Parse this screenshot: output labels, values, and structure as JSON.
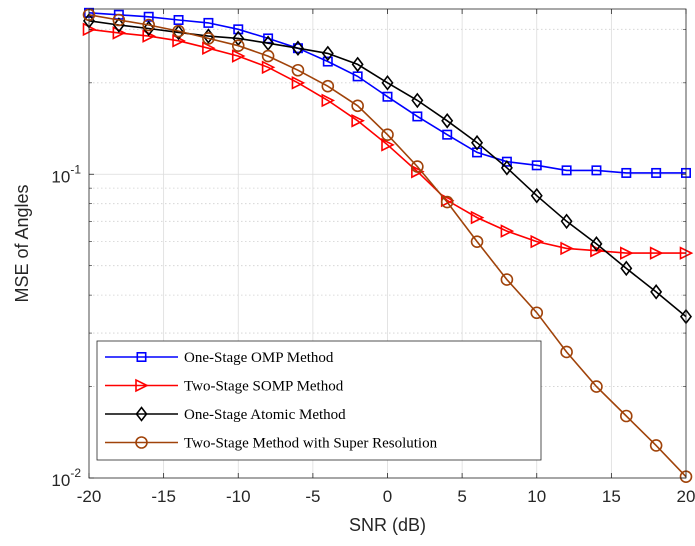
{
  "chart_data": {
    "type": "line",
    "title": "",
    "xlabel": "SNR (dB)",
    "ylabel": "MSE of Angles",
    "xlim": [
      -20,
      20
    ],
    "ylim": [
      0.01,
      0.35
    ],
    "y_scale": "log",
    "grid": true,
    "legend_position": "bottom-left",
    "x": [
      -20,
      -18,
      -16,
      -14,
      -12,
      -10,
      -8,
      -6,
      -4,
      -2,
      0,
      2,
      4,
      6,
      8,
      10,
      12,
      14,
      16,
      18,
      20
    ],
    "x_ticks": [
      {
        "value": -20,
        "label": "-20"
      },
      {
        "value": -15,
        "label": "-15"
      },
      {
        "value": -10,
        "label": "-10"
      },
      {
        "value": -5,
        "label": "-5"
      },
      {
        "value": 0,
        "label": "0"
      },
      {
        "value": 5,
        "label": "5"
      },
      {
        "value": 10,
        "label": "10"
      },
      {
        "value": 15,
        "label": "15"
      },
      {
        "value": 20,
        "label": "20"
      }
    ],
    "y_ticks": [
      {
        "value": 0.01,
        "base": "10",
        "exp": "-2"
      },
      {
        "value": 0.1,
        "base": "10",
        "exp": "-1"
      }
    ],
    "series": [
      {
        "name": "One-Stage OMP Method",
        "color": "#0000ff",
        "marker": "square",
        "values": [
          0.34,
          0.335,
          0.33,
          0.322,
          0.315,
          0.3,
          0.28,
          0.26,
          0.235,
          0.21,
          0.18,
          0.155,
          0.135,
          0.118,
          0.11,
          0.107,
          0.103,
          0.103,
          0.101,
          0.101,
          0.101
        ]
      },
      {
        "name": "Two-Stage SOMP Method",
        "color": "#ff0000",
        "marker": "triangle-right",
        "values": [
          0.3,
          0.292,
          0.285,
          0.275,
          0.26,
          0.245,
          0.225,
          0.2,
          0.175,
          0.15,
          0.125,
          0.102,
          0.082,
          0.072,
          0.065,
          0.06,
          0.057,
          0.056,
          0.055,
          0.055,
          0.055
        ]
      },
      {
        "name": "One-Stage Atomic Method",
        "color": "#000000",
        "marker": "diamond",
        "values": [
          0.32,
          0.31,
          0.302,
          0.293,
          0.285,
          0.28,
          0.27,
          0.26,
          0.25,
          0.23,
          0.2,
          0.175,
          0.15,
          0.127,
          0.105,
          0.085,
          0.07,
          0.059,
          0.049,
          0.041,
          0.034
        ]
      },
      {
        "name": "Two-Stage Method with Super Resolution",
        "color": "#a0430a",
        "marker": "circle",
        "values": [
          0.335,
          0.322,
          0.31,
          0.296,
          0.28,
          0.265,
          0.245,
          0.22,
          0.195,
          0.168,
          0.135,
          0.106,
          0.081,
          0.06,
          0.045,
          0.035,
          0.026,
          0.02,
          0.016,
          0.0128,
          0.0101
        ]
      }
    ]
  }
}
